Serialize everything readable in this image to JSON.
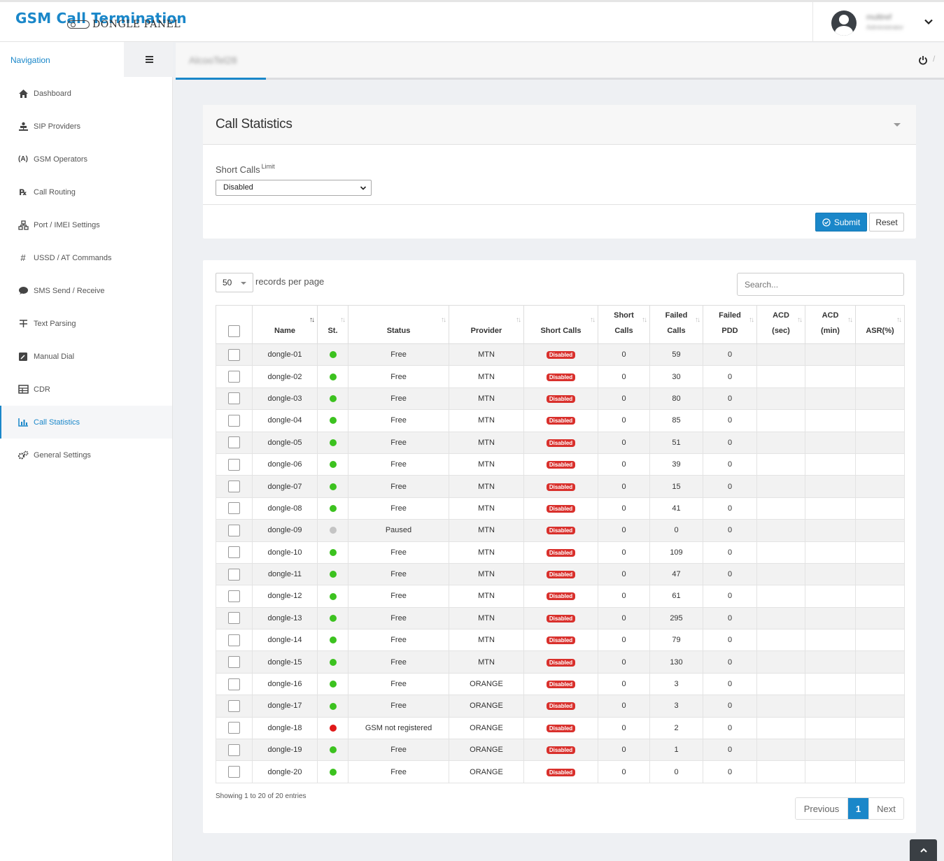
{
  "app": {
    "title": "GSM Call Termination",
    "subtitle": "DONGLE PANEL"
  },
  "user": {
    "name": "multiref",
    "role": "Administrator"
  },
  "sidebar": {
    "heading": "Navigation",
    "items": [
      {
        "label": "Dashboard",
        "icon": "home-icon"
      },
      {
        "label": "SIP Providers",
        "icon": "sip-icon"
      },
      {
        "label": "GSM Operators",
        "icon": "antenna-icon"
      },
      {
        "label": "Call Routing",
        "icon": "rx-icon"
      },
      {
        "label": "Port / IMEI Settings",
        "icon": "network-icon"
      },
      {
        "label": "USSD / AT Commands",
        "icon": "hash-icon"
      },
      {
        "label": "SMS Send / Receive",
        "icon": "sms-icon"
      },
      {
        "label": "Text Parsing",
        "icon": "text-icon"
      },
      {
        "label": "Manual Dial",
        "icon": "dial-icon"
      },
      {
        "label": "CDR",
        "icon": "table-icon"
      },
      {
        "label": "Call Statistics",
        "icon": "bar-chart-icon",
        "active": true
      },
      {
        "label": "General Settings",
        "icon": "gears-icon"
      }
    ]
  },
  "tabs": {
    "active_label": "AlcooTel28"
  },
  "filter_panel": {
    "title": "Call Statistics",
    "field_label": "Short Calls",
    "field_sup": "Limit",
    "select_value": "Disabled",
    "submit_label": "Submit",
    "reset_label": "Reset"
  },
  "table_panel": {
    "page_length": "50",
    "page_length_text": "records per page",
    "search_placeholder": "Search...",
    "columns": [
      {
        "l1": "",
        "l2": "Name"
      },
      {
        "l1": "",
        "l2": "St."
      },
      {
        "l1": "",
        "l2": "Status"
      },
      {
        "l1": "",
        "l2": "Provider"
      },
      {
        "l1": "",
        "l2": "Short Calls"
      },
      {
        "l1": "Short",
        "l2": "Calls"
      },
      {
        "l1": "Failed",
        "l2": "Calls"
      },
      {
        "l1": "Failed",
        "l2": "PDD"
      },
      {
        "l1": "ACD",
        "l2": "(sec)"
      },
      {
        "l1": "ACD",
        "l2": "(min)"
      },
      {
        "l1": "",
        "l2": "ASR(%)"
      }
    ],
    "status_colors": {
      "free": "#3cc21f",
      "paused": "#c4c4c4",
      "error": "#e01919"
    },
    "rows": [
      {
        "name": "dongle-01",
        "st": "free",
        "status": "Free",
        "provider": "MTN",
        "short_badge": "Disabled",
        "short_calls": "0",
        "failed_calls": "59",
        "failed_pdd": "0",
        "acd_sec": "",
        "acd_min": "",
        "asr": ""
      },
      {
        "name": "dongle-02",
        "st": "free",
        "status": "Free",
        "provider": "MTN",
        "short_badge": "Disabled",
        "short_calls": "0",
        "failed_calls": "30",
        "failed_pdd": "0",
        "acd_sec": "",
        "acd_min": "",
        "asr": ""
      },
      {
        "name": "dongle-03",
        "st": "free",
        "status": "Free",
        "provider": "MTN",
        "short_badge": "Disabled",
        "short_calls": "0",
        "failed_calls": "80",
        "failed_pdd": "0",
        "acd_sec": "",
        "acd_min": "",
        "asr": ""
      },
      {
        "name": "dongle-04",
        "st": "free",
        "status": "Free",
        "provider": "MTN",
        "short_badge": "Disabled",
        "short_calls": "0",
        "failed_calls": "85",
        "failed_pdd": "0",
        "acd_sec": "",
        "acd_min": "",
        "asr": ""
      },
      {
        "name": "dongle-05",
        "st": "free",
        "status": "Free",
        "provider": "MTN",
        "short_badge": "Disabled",
        "short_calls": "0",
        "failed_calls": "51",
        "failed_pdd": "0",
        "acd_sec": "",
        "acd_min": "",
        "asr": ""
      },
      {
        "name": "dongle-06",
        "st": "free",
        "status": "Free",
        "provider": "MTN",
        "short_badge": "Disabled",
        "short_calls": "0",
        "failed_calls": "39",
        "failed_pdd": "0",
        "acd_sec": "",
        "acd_min": "",
        "asr": ""
      },
      {
        "name": "dongle-07",
        "st": "free",
        "status": "Free",
        "provider": "MTN",
        "short_badge": "Disabled",
        "short_calls": "0",
        "failed_calls": "15",
        "failed_pdd": "0",
        "acd_sec": "",
        "acd_min": "",
        "asr": ""
      },
      {
        "name": "dongle-08",
        "st": "free",
        "status": "Free",
        "provider": "MTN",
        "short_badge": "Disabled",
        "short_calls": "0",
        "failed_calls": "41",
        "failed_pdd": "0",
        "acd_sec": "",
        "acd_min": "",
        "asr": ""
      },
      {
        "name": "dongle-09",
        "st": "paused",
        "status": "Paused",
        "provider": "MTN",
        "short_badge": "Disabled",
        "short_calls": "0",
        "failed_calls": "0",
        "failed_pdd": "0",
        "acd_sec": "",
        "acd_min": "",
        "asr": ""
      },
      {
        "name": "dongle-10",
        "st": "free",
        "status": "Free",
        "provider": "MTN",
        "short_badge": "Disabled",
        "short_calls": "0",
        "failed_calls": "109",
        "failed_pdd": "0",
        "acd_sec": "",
        "acd_min": "",
        "asr": ""
      },
      {
        "name": "dongle-11",
        "st": "free",
        "status": "Free",
        "provider": "MTN",
        "short_badge": "Disabled",
        "short_calls": "0",
        "failed_calls": "47",
        "failed_pdd": "0",
        "acd_sec": "",
        "acd_min": "",
        "asr": ""
      },
      {
        "name": "dongle-12",
        "st": "free",
        "status": "Free",
        "provider": "MTN",
        "short_badge": "Disabled",
        "short_calls": "0",
        "failed_calls": "61",
        "failed_pdd": "0",
        "acd_sec": "",
        "acd_min": "",
        "asr": ""
      },
      {
        "name": "dongle-13",
        "st": "free",
        "status": "Free",
        "provider": "MTN",
        "short_badge": "Disabled",
        "short_calls": "0",
        "failed_calls": "295",
        "failed_pdd": "0",
        "acd_sec": "",
        "acd_min": "",
        "asr": ""
      },
      {
        "name": "dongle-14",
        "st": "free",
        "status": "Free",
        "provider": "MTN",
        "short_badge": "Disabled",
        "short_calls": "0",
        "failed_calls": "79",
        "failed_pdd": "0",
        "acd_sec": "",
        "acd_min": "",
        "asr": ""
      },
      {
        "name": "dongle-15",
        "st": "free",
        "status": "Free",
        "provider": "MTN",
        "short_badge": "Disabled",
        "short_calls": "0",
        "failed_calls": "130",
        "failed_pdd": "0",
        "acd_sec": "",
        "acd_min": "",
        "asr": ""
      },
      {
        "name": "dongle-16",
        "st": "free",
        "status": "Free",
        "provider": "ORANGE",
        "short_badge": "Disabled",
        "short_calls": "0",
        "failed_calls": "3",
        "failed_pdd": "0",
        "acd_sec": "",
        "acd_min": "",
        "asr": ""
      },
      {
        "name": "dongle-17",
        "st": "free",
        "status": "Free",
        "provider": "ORANGE",
        "short_badge": "Disabled",
        "short_calls": "0",
        "failed_calls": "3",
        "failed_pdd": "0",
        "acd_sec": "",
        "acd_min": "",
        "asr": ""
      },
      {
        "name": "dongle-18",
        "st": "error",
        "status": "GSM not registered",
        "provider": "ORANGE",
        "short_badge": "Disabled",
        "short_calls": "0",
        "failed_calls": "2",
        "failed_pdd": "0",
        "acd_sec": "",
        "acd_min": "",
        "asr": ""
      },
      {
        "name": "dongle-19",
        "st": "free",
        "status": "Free",
        "provider": "ORANGE",
        "short_badge": "Disabled",
        "short_calls": "0",
        "failed_calls": "1",
        "failed_pdd": "0",
        "acd_sec": "",
        "acd_min": "",
        "asr": ""
      },
      {
        "name": "dongle-20",
        "st": "free",
        "status": "Free",
        "provider": "ORANGE",
        "short_badge": "Disabled",
        "short_calls": "0",
        "failed_calls": "0",
        "failed_pdd": "0",
        "acd_sec": "",
        "acd_min": "",
        "asr": ""
      }
    ],
    "info_text": "Showing 1 to 20 of 20 entries",
    "pager": {
      "prev": "Previous",
      "current": "1",
      "next": "Next"
    }
  },
  "colors": {
    "accent": "#1a87c9",
    "badge": "#d9302c"
  }
}
